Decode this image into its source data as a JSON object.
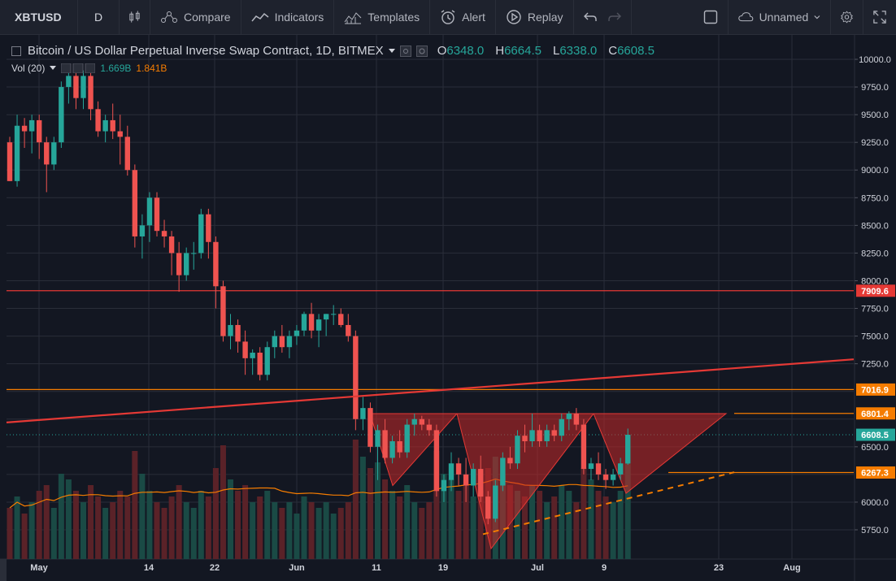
{
  "toolbar": {
    "symbol": "XBTUSD",
    "interval": "D",
    "compare": "Compare",
    "indicators": "Indicators",
    "templates": "Templates",
    "alert": "Alert",
    "replay": "Replay",
    "layout_name": "Unnamed"
  },
  "legend": {
    "title": "Bitcoin / US Dollar Perpetual Inverse Swap Contract, 1D, BITMEX",
    "o_label": "O",
    "o_value": "6348.0",
    "h_label": "H",
    "h_value": "6664.5",
    "l_label": "L",
    "l_value": "6338.0",
    "c_label": "C",
    "c_value": "6608.5",
    "vol_label": "Vol (20)",
    "vol_value": "1.669B",
    "vol_ma_value": "1.841B"
  },
  "colors": {
    "up": "#26a69a",
    "down": "#ef5350",
    "background": "#131722",
    "hline": "#e53935",
    "orange": "#f57c00"
  },
  "price_axis": {
    "ticks": [
      "10000.0",
      "9750.0",
      "9500.0",
      "9250.0",
      "9000.0",
      "8750.0",
      "8500.0",
      "8250.0",
      "8000.0",
      "7750.0",
      "7500.0",
      "7250.0",
      "6500.0",
      "6000.0",
      "5750.0"
    ]
  },
  "time_axis": {
    "ticks": [
      "May",
      "14",
      "22",
      "Jun",
      "11",
      "19",
      "Jul",
      "9",
      "23",
      "Aug"
    ]
  },
  "price_labels": [
    {
      "text": "7909.6",
      "color": "#e53935"
    },
    {
      "text": "7016.9",
      "color": "#f57c00"
    },
    {
      "text": "6801.4",
      "color": "#f57c00"
    },
    {
      "text": "6608.5",
      "color": "#26a69a"
    },
    {
      "text": "6267.3",
      "color": "#f57c00"
    }
  ],
  "chart_data": {
    "type": "candlestick",
    "symbol": "XBTUSD",
    "interval": "1D",
    "exchange": "BITMEX",
    "ylim": [
      5550,
      10100
    ],
    "horizontal_lines": [
      7909.6,
      7016.9,
      6801.4,
      6267.3
    ],
    "last_price": 6608.5,
    "candles": [
      [
        9250,
        9300,
        8900,
        8900
      ],
      [
        8900,
        9500,
        8850,
        9400
      ],
      [
        9400,
        9470,
        9200,
        9350
      ],
      [
        9350,
        9500,
        9150,
        9450
      ],
      [
        9450,
        9500,
        9100,
        9250
      ],
      [
        9250,
        9300,
        8800,
        9050
      ],
      [
        9050,
        9300,
        9000,
        9250
      ],
      [
        9250,
        9800,
        9200,
        9750
      ],
      [
        9750,
        9950,
        9600,
        9850
      ],
      [
        9850,
        9950,
        9550,
        9650
      ],
      [
        9650,
        9900,
        9550,
        9850
      ],
      [
        9850,
        9900,
        9450,
        9550
      ],
      [
        9550,
        9620,
        9300,
        9350
      ],
      [
        9350,
        9500,
        9250,
        9450
      ],
      [
        9450,
        9600,
        9280,
        9350
      ],
      [
        9350,
        9500,
        9050,
        9300
      ],
      [
        9300,
        9400,
        8950,
        9000
      ],
      [
        9000,
        9050,
        8300,
        8400
      ],
      [
        8400,
        8600,
        8200,
        8500
      ],
      [
        8500,
        8800,
        8350,
        8750
      ],
      [
        8750,
        8800,
        8400,
        8450
      ],
      [
        8450,
        8550,
        8300,
        8400
      ],
      [
        8400,
        8450,
        8050,
        8250
      ],
      [
        8250,
        8350,
        7900,
        8050
      ],
      [
        8050,
        8300,
        8000,
        8250
      ],
      [
        8250,
        8350,
        8100,
        8250
      ],
      [
        8250,
        8650,
        8200,
        8600
      ],
      [
        8600,
        8650,
        8200,
        8350
      ],
      [
        8350,
        8400,
        7750,
        7950
      ],
      [
        7950,
        8000,
        7450,
        7500
      ],
      [
        7500,
        7700,
        7380,
        7600
      ],
      [
        7600,
        7650,
        7350,
        7450
      ],
      [
        7450,
        7550,
        7150,
        7300
      ],
      [
        7300,
        7380,
        7150,
        7350
      ],
      [
        7350,
        7400,
        7100,
        7150
      ],
      [
        7150,
        7450,
        7100,
        7400
      ],
      [
        7400,
        7550,
        7300,
        7500
      ],
      [
        7500,
        7600,
        7350,
        7400
      ],
      [
        7400,
        7550,
        7300,
        7500
      ],
      [
        7500,
        7600,
        7420,
        7550
      ],
      [
        7550,
        7720,
        7500,
        7700
      ],
      [
        7700,
        7800,
        7480,
        7550
      ],
      [
        7550,
        7700,
        7400,
        7650
      ],
      [
        7650,
        7700,
        7500,
        7700
      ],
      [
        7700,
        7780,
        7600,
        7700
      ],
      [
        7700,
        7750,
        7580,
        7600
      ],
      [
        7600,
        7700,
        7450,
        7500
      ],
      [
        7500,
        7550,
        6650,
        6750
      ],
      [
        6750,
        6950,
        6650,
        6850
      ],
      [
        6850,
        6900,
        6450,
        6500
      ],
      [
        6500,
        6700,
        6200,
        6650
      ],
      [
        6650,
        6750,
        6350,
        6400
      ],
      [
        6400,
        6600,
        6350,
        6550
      ],
      [
        6550,
        6650,
        6400,
        6450
      ],
      [
        6450,
        6750,
        6400,
        6700
      ],
      [
        6700,
        6800,
        6600,
        6750
      ],
      [
        6750,
        6780,
        6650,
        6700
      ],
      [
        6700,
        6750,
        6600,
        6650
      ],
      [
        6650,
        6700,
        6050,
        6100
      ],
      [
        6100,
        6250,
        6000,
        6200
      ],
      [
        6200,
        6450,
        6100,
        6350
      ],
      [
        6350,
        6400,
        6150,
        6250
      ],
      [
        6250,
        6400,
        6000,
        6150
      ],
      [
        6150,
        6350,
        6050,
        6300
      ],
      [
        6300,
        6420,
        6000,
        6050
      ],
      [
        6050,
        6100,
        5800,
        5850
      ],
      [
        5850,
        6200,
        5820,
        6150
      ],
      [
        6150,
        6450,
        6100,
        6400
      ],
      [
        6400,
        6500,
        6300,
        6350
      ],
      [
        6350,
        6650,
        6300,
        6600
      ],
      [
        6600,
        6700,
        6450,
        6550
      ],
      [
        6550,
        6800,
        6500,
        6650
      ],
      [
        6650,
        6700,
        6500,
        6550
      ],
      [
        6550,
        6700,
        6500,
        6650
      ],
      [
        6650,
        6700,
        6550,
        6600
      ],
      [
        6600,
        6800,
        6550,
        6750
      ],
      [
        6750,
        6820,
        6650,
        6800
      ],
      [
        6800,
        6850,
        6650,
        6700
      ],
      [
        6700,
        6750,
        6250,
        6300
      ],
      [
        6300,
        6400,
        6200,
        6350
      ],
      [
        6350,
        6450,
        6200,
        6250
      ],
      [
        6250,
        6300,
        6120,
        6200
      ],
      [
        6200,
        6300,
        6150,
        6250
      ],
      [
        6250,
        6400,
        6200,
        6350
      ],
      [
        6348,
        6664.5,
        6338,
        6608.5
      ]
    ],
    "volume": [
      0.9,
      1.1,
      0.8,
      1.0,
      1.2,
      1.3,
      0.9,
      1.5,
      1.4,
      1.2,
      1.0,
      1.3,
      1.1,
      0.9,
      1.0,
      1.2,
      1.1,
      1.9,
      1.5,
      1.2,
      1.0,
      0.9,
      1.1,
      1.3,
      1.0,
      0.9,
      1.2,
      1.1,
      1.6,
      2.0,
      1.4,
      1.2,
      1.3,
      1.0,
      1.1,
      1.2,
      1.0,
      0.9,
      1.0,
      0.8,
      1.1,
      1.0,
      0.9,
      1.0,
      0.8,
      0.9,
      1.0,
      2.1,
      1.8,
      1.6,
      1.7,
      1.4,
      1.2,
      1.1,
      1.3,
      1.0,
      0.9,
      1.0,
      1.9,
      1.5,
      1.4,
      1.2,
      1.3,
      1.1,
      1.2,
      1.6,
      1.8,
      1.5,
      1.3,
      1.2,
      1.1,
      1.3,
      1.2,
      1.0,
      1.1,
      1.3,
      1.2,
      1.0,
      1.6,
      1.4,
      1.2,
      1.1,
      1.0,
      1.2,
      1.669
    ],
    "lines": [
      {
        "name": "trendline",
        "from": [
          "2018-04-30",
          6720
        ],
        "to": [
          "2018-08-05",
          7290
        ]
      },
      {
        "name": "pattern-support",
        "from": [
          "2018-06-24",
          5710
        ],
        "to": [
          "2018-07-20",
          6270
        ]
      }
    ],
    "triangles": [
      [
        [
          6800,
          0
        ],
        [
          6150,
          0
        ],
        [
          6800,
          0
        ]
      ]
    ]
  }
}
